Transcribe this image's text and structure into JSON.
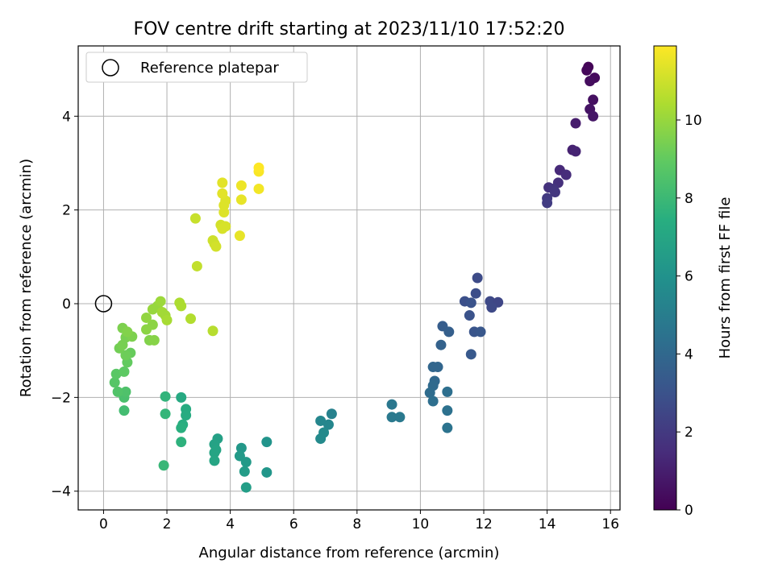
{
  "chart_data": {
    "type": "scatter",
    "title": "FOV centre drift starting at 2023/11/10 17:52:20",
    "xlabel": "Angular distance from reference (arcmin)",
    "ylabel": "Rotation from reference (arcmin)",
    "xlim": [
      -0.8,
      16.3
    ],
    "ylim": [
      -4.4,
      5.5
    ],
    "xticks": [
      0,
      2,
      4,
      6,
      8,
      10,
      12,
      14,
      16
    ],
    "yticks": [
      -4,
      -2,
      0,
      2,
      4
    ],
    "grid": true,
    "legend": {
      "position": "top-left",
      "entries": [
        "Reference platepar"
      ]
    },
    "reference": {
      "x": 0,
      "y": 0
    },
    "colorbar": {
      "label": "Hours from first FF file",
      "colormap": "viridis",
      "range": [
        0,
        11.9
      ],
      "ticks": [
        0,
        2,
        4,
        6,
        8,
        10
      ]
    },
    "points": [
      {
        "x": 15.3,
        "y": 5.05,
        "h": 0.1
      },
      {
        "x": 15.25,
        "y": 4.98,
        "h": 0.2
      },
      {
        "x": 15.5,
        "y": 4.82,
        "h": 0.3
      },
      {
        "x": 15.35,
        "y": 4.75,
        "h": 0.4
      },
      {
        "x": 15.45,
        "y": 4.35,
        "h": 0.5
      },
      {
        "x": 15.35,
        "y": 4.15,
        "h": 0.6
      },
      {
        "x": 15.45,
        "y": 4.0,
        "h": 0.7
      },
      {
        "x": 14.9,
        "y": 3.85,
        "h": 0.9
      },
      {
        "x": 14.8,
        "y": 3.28,
        "h": 1.1
      },
      {
        "x": 14.9,
        "y": 3.25,
        "h": 1.2
      },
      {
        "x": 14.4,
        "y": 2.85,
        "h": 1.4
      },
      {
        "x": 14.6,
        "y": 2.75,
        "h": 1.5
      },
      {
        "x": 14.35,
        "y": 2.58,
        "h": 1.6
      },
      {
        "x": 14.05,
        "y": 2.48,
        "h": 1.7
      },
      {
        "x": 14.2,
        "y": 2.45,
        "h": 1.8
      },
      {
        "x": 14.25,
        "y": 2.38,
        "h": 1.9
      },
      {
        "x": 14.0,
        "y": 2.25,
        "h": 2.0
      },
      {
        "x": 14.0,
        "y": 2.15,
        "h": 2.1
      },
      {
        "x": 11.8,
        "y": 0.55,
        "h": 2.7
      },
      {
        "x": 11.75,
        "y": 0.22,
        "h": 2.8
      },
      {
        "x": 11.4,
        "y": 0.05,
        "h": 2.9
      },
      {
        "x": 11.6,
        "y": 0.02,
        "h": 3.0
      },
      {
        "x": 12.2,
        "y": 0.05,
        "h": 2.6
      },
      {
        "x": 12.45,
        "y": 0.03,
        "h": 2.5
      },
      {
        "x": 12.25,
        "y": -0.08,
        "h": 2.6
      },
      {
        "x": 11.55,
        "y": -0.25,
        "h": 3.0
      },
      {
        "x": 11.7,
        "y": -0.6,
        "h": 3.1
      },
      {
        "x": 11.9,
        "y": -0.6,
        "h": 3.2
      },
      {
        "x": 11.6,
        "y": -1.08,
        "h": 3.3
      },
      {
        "x": 10.7,
        "y": -0.48,
        "h": 3.5
      },
      {
        "x": 10.9,
        "y": -0.6,
        "h": 3.6
      },
      {
        "x": 10.65,
        "y": -0.88,
        "h": 3.7
      },
      {
        "x": 10.4,
        "y": -1.35,
        "h": 3.9
      },
      {
        "x": 10.55,
        "y": -1.35,
        "h": 3.9
      },
      {
        "x": 10.45,
        "y": -1.65,
        "h": 4.0
      },
      {
        "x": 10.4,
        "y": -1.75,
        "h": 4.1
      },
      {
        "x": 10.3,
        "y": -1.9,
        "h": 4.2
      },
      {
        "x": 10.4,
        "y": -2.08,
        "h": 4.3
      },
      {
        "x": 10.85,
        "y": -1.88,
        "h": 4.3
      },
      {
        "x": 10.85,
        "y": -2.28,
        "h": 4.4
      },
      {
        "x": 10.85,
        "y": -2.65,
        "h": 4.5
      },
      {
        "x": 9.1,
        "y": -2.15,
        "h": 4.7
      },
      {
        "x": 9.1,
        "y": -2.42,
        "h": 4.8
      },
      {
        "x": 9.35,
        "y": -2.42,
        "h": 4.8
      },
      {
        "x": 7.2,
        "y": -2.35,
        "h": 5.2
      },
      {
        "x": 6.85,
        "y": -2.5,
        "h": 5.4
      },
      {
        "x": 7.1,
        "y": -2.58,
        "h": 5.4
      },
      {
        "x": 6.95,
        "y": -2.75,
        "h": 5.6
      },
      {
        "x": 6.85,
        "y": -2.88,
        "h": 5.6
      },
      {
        "x": 5.15,
        "y": -2.95,
        "h": 6.1
      },
      {
        "x": 5.15,
        "y": -3.6,
        "h": 6.2
      },
      {
        "x": 4.35,
        "y": -3.08,
        "h": 6.3
      },
      {
        "x": 4.3,
        "y": -3.25,
        "h": 6.4
      },
      {
        "x": 4.5,
        "y": -3.38,
        "h": 6.4
      },
      {
        "x": 4.45,
        "y": -3.58,
        "h": 6.5
      },
      {
        "x": 4.5,
        "y": -3.92,
        "h": 6.6
      },
      {
        "x": 3.6,
        "y": -2.88,
        "h": 6.7
      },
      {
        "x": 3.5,
        "y": -3.0,
        "h": 6.8
      },
      {
        "x": 3.55,
        "y": -3.12,
        "h": 6.9
      },
      {
        "x": 3.5,
        "y": -3.18,
        "h": 6.9
      },
      {
        "x": 3.5,
        "y": -3.35,
        "h": 7.0
      },
      {
        "x": 2.45,
        "y": -2.0,
        "h": 7.2
      },
      {
        "x": 2.6,
        "y": -2.25,
        "h": 7.3
      },
      {
        "x": 2.6,
        "y": -2.38,
        "h": 7.3
      },
      {
        "x": 2.5,
        "y": -2.58,
        "h": 7.4
      },
      {
        "x": 2.45,
        "y": -2.65,
        "h": 7.5
      },
      {
        "x": 2.45,
        "y": -2.95,
        "h": 7.6
      },
      {
        "x": 1.95,
        "y": -1.98,
        "h": 7.7
      },
      {
        "x": 1.95,
        "y": -2.35,
        "h": 7.8
      },
      {
        "x": 1.9,
        "y": -3.45,
        "h": 7.9
      },
      {
        "x": 0.65,
        "y": -2.28,
        "h": 8.2
      },
      {
        "x": 0.65,
        "y": -2.0,
        "h": 8.4
      },
      {
        "x": 0.7,
        "y": -1.88,
        "h": 8.5
      },
      {
        "x": 0.45,
        "y": -1.88,
        "h": 8.6
      },
      {
        "x": 0.35,
        "y": -1.68,
        "h": 8.7
      },
      {
        "x": 0.4,
        "y": -1.5,
        "h": 8.8
      },
      {
        "x": 0.65,
        "y": -1.45,
        "h": 8.9
      },
      {
        "x": 0.75,
        "y": -1.25,
        "h": 9.0
      },
      {
        "x": 0.85,
        "y": -1.05,
        "h": 9.1
      },
      {
        "x": 0.7,
        "y": -1.1,
        "h": 9.2
      },
      {
        "x": 0.5,
        "y": -0.95,
        "h": 9.3
      },
      {
        "x": 0.6,
        "y": -0.88,
        "h": 9.4
      },
      {
        "x": 0.7,
        "y": -0.72,
        "h": 9.4
      },
      {
        "x": 0.9,
        "y": -0.7,
        "h": 9.5
      },
      {
        "x": 0.6,
        "y": -0.52,
        "h": 9.5
      },
      {
        "x": 0.75,
        "y": -0.6,
        "h": 9.6
      },
      {
        "x": 1.45,
        "y": -0.78,
        "h": 9.6
      },
      {
        "x": 1.6,
        "y": -0.78,
        "h": 9.7
      },
      {
        "x": 1.35,
        "y": -0.55,
        "h": 9.8
      },
      {
        "x": 1.55,
        "y": -0.45,
        "h": 9.8
      },
      {
        "x": 1.35,
        "y": -0.3,
        "h": 9.9
      },
      {
        "x": 1.55,
        "y": -0.12,
        "h": 10.0
      },
      {
        "x": 1.7,
        "y": -0.05,
        "h": 10.0
      },
      {
        "x": 1.8,
        "y": 0.05,
        "h": 10.1
      },
      {
        "x": 1.85,
        "y": -0.18,
        "h": 10.2
      },
      {
        "x": 1.95,
        "y": -0.25,
        "h": 10.2
      },
      {
        "x": 2.0,
        "y": -0.35,
        "h": 10.3
      },
      {
        "x": 2.4,
        "y": 0.02,
        "h": 10.4
      },
      {
        "x": 2.45,
        "y": -0.05,
        "h": 10.4
      },
      {
        "x": 2.75,
        "y": -0.32,
        "h": 10.5
      },
      {
        "x": 3.45,
        "y": -0.58,
        "h": 10.6
      },
      {
        "x": 2.95,
        "y": 0.8,
        "h": 10.8
      },
      {
        "x": 2.9,
        "y": 1.82,
        "h": 10.9
      },
      {
        "x": 3.45,
        "y": 1.35,
        "h": 11.0
      },
      {
        "x": 3.5,
        "y": 1.28,
        "h": 11.0
      },
      {
        "x": 3.55,
        "y": 1.22,
        "h": 11.1
      },
      {
        "x": 3.7,
        "y": 1.68,
        "h": 11.1
      },
      {
        "x": 3.75,
        "y": 1.6,
        "h": 11.2
      },
      {
        "x": 3.85,
        "y": 1.65,
        "h": 11.2
      },
      {
        "x": 3.8,
        "y": 1.95,
        "h": 11.3
      },
      {
        "x": 3.8,
        "y": 2.1,
        "h": 11.3
      },
      {
        "x": 3.85,
        "y": 2.2,
        "h": 11.3
      },
      {
        "x": 3.75,
        "y": 2.35,
        "h": 11.4
      },
      {
        "x": 3.75,
        "y": 2.58,
        "h": 11.4
      },
      {
        "x": 4.3,
        "y": 1.45,
        "h": 11.5
      },
      {
        "x": 4.35,
        "y": 2.22,
        "h": 11.5
      },
      {
        "x": 4.35,
        "y": 2.52,
        "h": 11.6
      },
      {
        "x": 4.9,
        "y": 2.45,
        "h": 11.7
      },
      {
        "x": 4.9,
        "y": 2.82,
        "h": 11.8
      },
      {
        "x": 4.9,
        "y": 2.9,
        "h": 11.9
      }
    ]
  }
}
